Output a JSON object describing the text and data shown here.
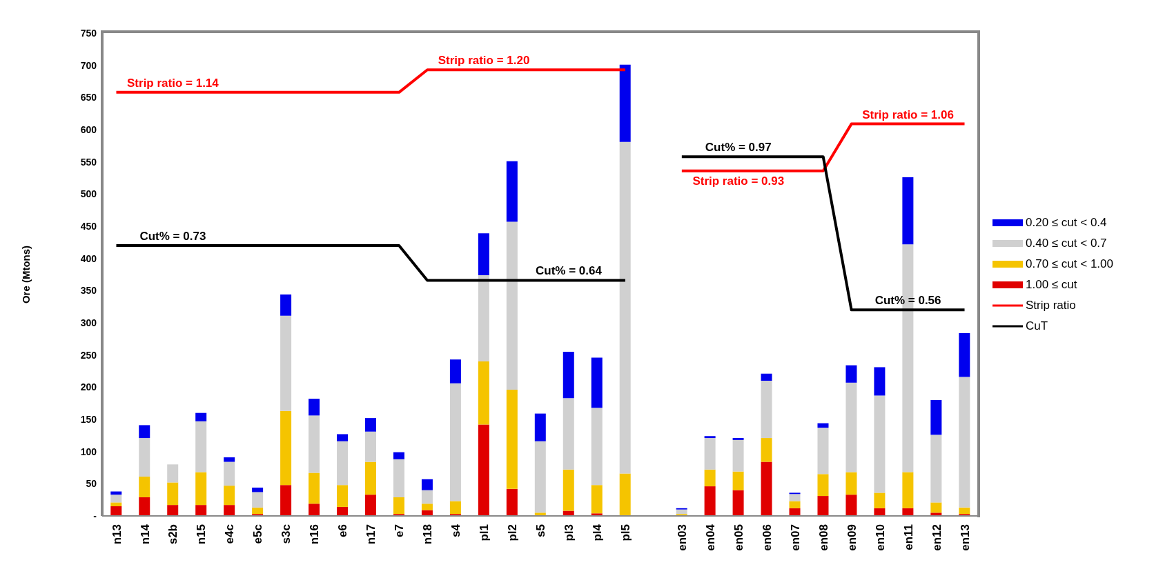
{
  "chart_data": {
    "type": "bar",
    "stacked": true,
    "ylabel": "Ore (Mtons)",
    "categories": [
      "n13",
      "n14",
      "s2b",
      "n15",
      "e4c",
      "e5c",
      "s3c",
      "n16",
      "e6",
      "n17",
      "e7",
      "n18",
      "s4",
      "pl1",
      "pl2",
      "s5",
      "pl3",
      "pl4",
      "pl5",
      null,
      "en03",
      "en04",
      "en05",
      "en06",
      "en07",
      "en08",
      "en09",
      "en10",
      "en11",
      "en12",
      "en13"
    ],
    "series": [
      {
        "name": "1.00 ≤ cut",
        "color": "#e00000",
        "values": [
          15,
          29,
          17,
          17,
          17,
          3,
          48,
          19,
          14,
          33,
          3,
          9,
          3,
          142,
          42,
          0,
          8,
          4,
          0,
          null,
          0,
          46,
          40,
          84,
          12,
          31,
          33,
          12,
          12,
          5,
          3
        ]
      },
      {
        "name": "0.70 ≤ cut < 1.00",
        "color": "#f5c400",
        "values": [
          6,
          32,
          35,
          51,
          30,
          10,
          115,
          48,
          34,
          51,
          26,
          10,
          20,
          98,
          154,
          5,
          64,
          44,
          66,
          null,
          3,
          26,
          29,
          37,
          11,
          34,
          35,
          24,
          56,
          16,
          10
        ]
      },
      {
        "name": "0.40 ≤ cut < 0.7",
        "color": "#d0d0d0",
        "values": [
          12,
          60,
          28,
          79,
          37,
          24,
          148,
          89,
          68,
          47,
          59,
          21,
          183,
          134,
          261,
          111,
          111,
          120,
          515,
          null,
          7,
          49,
          49,
          89,
          11,
          72,
          139,
          151,
          354,
          105,
          203
        ]
      },
      {
        "name": "0.20 ≤ cut < 0.4",
        "color": "#0000ee",
        "values": [
          5,
          20,
          0,
          13,
          7,
          7,
          33,
          26,
          11,
          21,
          11,
          17,
          37,
          65,
          94,
          43,
          72,
          78,
          120,
          null,
          2,
          3,
          3,
          11,
          2,
          7,
          27,
          44,
          104,
          54,
          68
        ]
      },
      {
        "name": "Strip ratio",
        "type": "line",
        "color": "#ff0000",
        "values": [
          658,
          658,
          658,
          658,
          658,
          658,
          658,
          658,
          658,
          658,
          658,
          693,
          693,
          693,
          693,
          693,
          693,
          693,
          693,
          null,
          536,
          536,
          536,
          536,
          536,
          536,
          609,
          609,
          609,
          609,
          609
        ]
      },
      {
        "name": "CuT",
        "type": "line",
        "color": "#000000",
        "values": [
          420,
          420,
          420,
          420,
          420,
          420,
          420,
          420,
          420,
          420,
          420,
          366,
          366,
          366,
          366,
          366,
          366,
          366,
          366,
          null,
          558,
          558,
          558,
          558,
          558,
          558,
          320,
          320,
          320,
          320,
          320
        ]
      }
    ],
    "ylim": [
      0,
      750
    ],
    "yticks": [
      {
        "value": 0,
        "label": "-"
      },
      50,
      100,
      150,
      200,
      250,
      300,
      350,
      400,
      450,
      500,
      550,
      600,
      650,
      700,
      750
    ],
    "grid": false,
    "legend": "right",
    "marker": "none",
    "line_style": "solid",
    "annotations": [
      {
        "text": "Strip ratio = 1.14",
        "x": "s2b",
        "y": 658
      },
      {
        "text": "Strip ratio = 1.20",
        "x": "pl1",
        "y": 693
      },
      {
        "text": "Cut% = 0.73",
        "x": "s2b",
        "y": 420
      },
      {
        "text": "Cut% = 0.64",
        "x": "pl3",
        "y": 366
      },
      {
        "text": "Cut% = 0.97",
        "x": "en05",
        "y": 558
      },
      {
        "text": "Strip ratio = 0.93",
        "x": "en05",
        "y": 536
      },
      {
        "text": "Strip ratio = 1.06",
        "x": "en11",
        "y": 609
      },
      {
        "text": "Cut% = 0.56",
        "x": "en11",
        "y": 320
      }
    ]
  }
}
